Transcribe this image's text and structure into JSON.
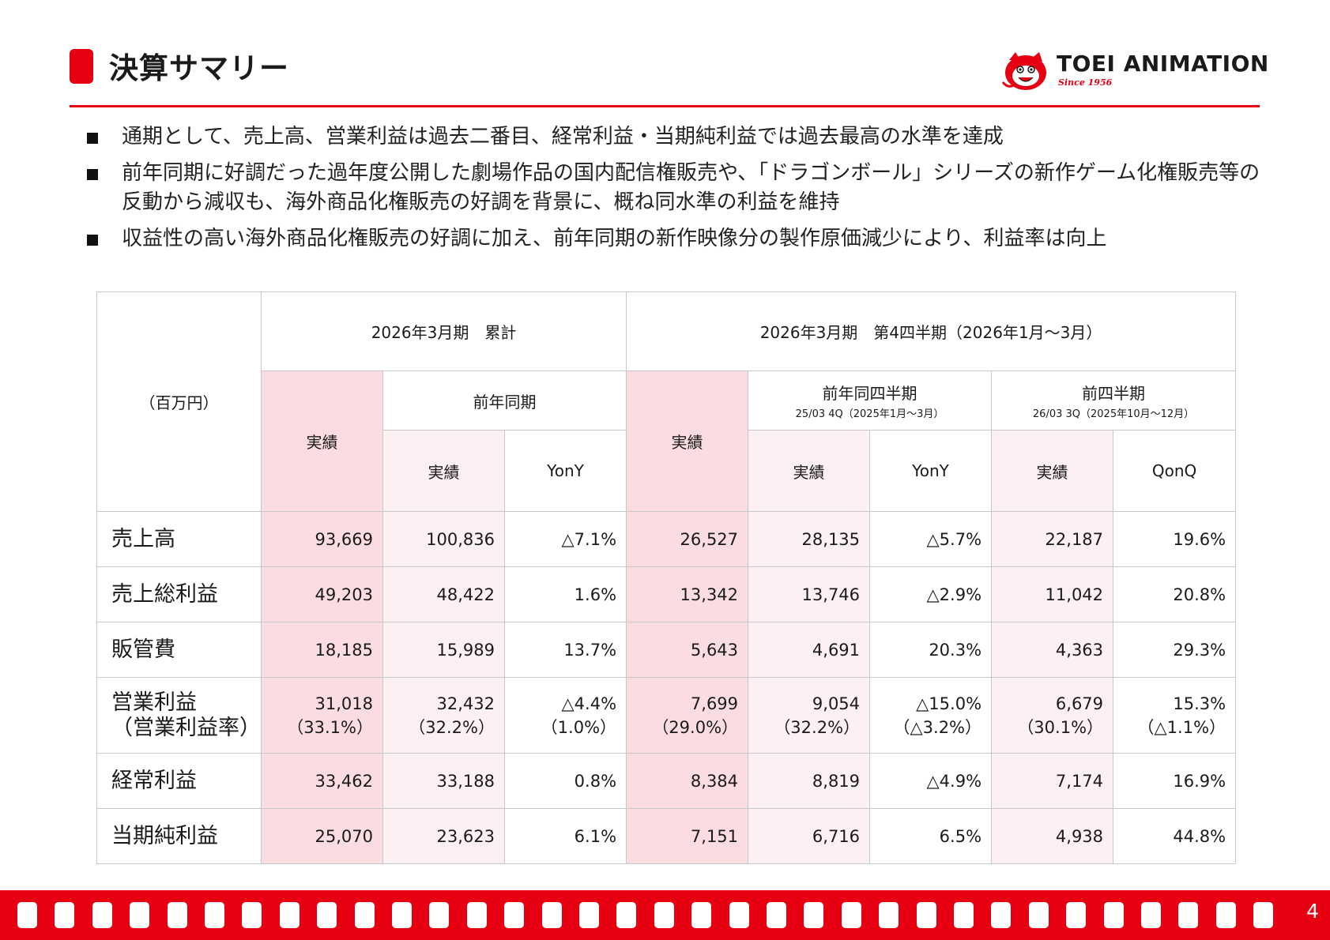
{
  "header": {
    "title": "決算サマリー",
    "logo_text": "TOEI ANIMATION",
    "logo_since": "Since 1956",
    "logo_icon": "toei-mascot-icon",
    "accent_color": "#e60012"
  },
  "bullets": [
    "通期として、売上高、営業利益は過去二番目、経常利益・当期純利益では過去最高の水準を達成",
    "前年同期に好調だった過年度公開した劇場作品の国内配信権販売や、「ドラゴンボール」シリーズの新作ゲーム化権販売等の反動から減収も、海外商品化権販売の好調を背景に、概ね同水準の利益を維持",
    "収益性の高い海外商品化権販売の好調に加え、前年同期の新作映像分の製作原価減少により、利益率は向上"
  ],
  "table": {
    "unit_label": "（百万円）",
    "group_cumulative": "2026年3月期　累計",
    "group_q4": "2026年3月期　第4四半期（2026年1月～3月）",
    "prev_year_same_period": "前年同期",
    "prev_year_same_quarter": "前年同四半期",
    "prev_year_same_quarter_sub": "25/03 4Q（2025年1月～3月）",
    "prev_quarter": "前四半期",
    "prev_quarter_sub": "26/03 3Q（2025年10月～12月）",
    "actual": "実績",
    "yony": "YonY",
    "qonq": "QonQ",
    "rows": [
      {
        "label": "売上高",
        "values": [
          "93,669",
          "100,836",
          "△7.1%",
          "26,527",
          "28,135",
          "△5.7%",
          "22,187",
          "19.6%"
        ]
      },
      {
        "label": "売上総利益",
        "values": [
          "49,203",
          "48,422",
          "1.6%",
          "13,342",
          "13,746",
          "△2.9%",
          "11,042",
          "20.8%"
        ]
      },
      {
        "label": "販管費",
        "values": [
          "18,185",
          "15,989",
          "13.7%",
          "5,643",
          "4,691",
          "20.3%",
          "4,363",
          "29.3%"
        ]
      },
      {
        "label": "営業利益",
        "label2": "（営業利益率）",
        "values": [
          "31,018",
          "32,432",
          "△4.4%",
          "7,699",
          "9,054",
          "△15.0%",
          "6,679",
          "15.3%"
        ],
        "values2": [
          "（33.1%）",
          "（32.2%）",
          "（1.0%）",
          "（29.0%）",
          "（32.2%）",
          "（△3.2%）",
          "（30.1%）",
          "（△1.1%）"
        ]
      },
      {
        "label": "経常利益",
        "values": [
          "33,462",
          "33,188",
          "0.8%",
          "8,384",
          "8,819",
          "△4.9%",
          "7,174",
          "16.9%"
        ]
      },
      {
        "label": "当期純利益",
        "values": [
          "25,070",
          "23,623",
          "6.1%",
          "7,151",
          "6,716",
          "6.5%",
          "4,938",
          "44.8%"
        ]
      }
    ]
  },
  "footer": {
    "page_number": "4"
  }
}
